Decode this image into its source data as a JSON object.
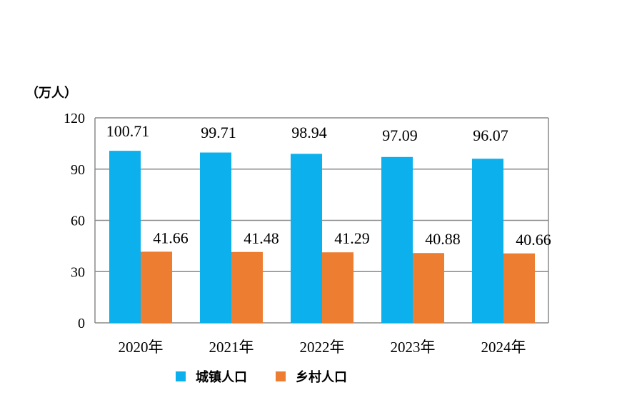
{
  "colors": {
    "urban": "#0bb0ec",
    "rural": "#ed7d31",
    "grid": "#8a8a8a"
  },
  "chart_data": {
    "type": "bar",
    "unit": "（万人）",
    "categories": [
      "2020年",
      "2021年",
      "2022年",
      "2023年",
      "2024年"
    ],
    "series": [
      {
        "name": "城镇人口",
        "values": [
          100.71,
          99.71,
          98.94,
          97.09,
          96.07
        ],
        "labels": [
          "100.71",
          "99.71",
          "98.94",
          "97.09",
          "96.07"
        ]
      },
      {
        "name": "乡村人口",
        "values": [
          41.66,
          41.48,
          41.29,
          40.88,
          40.66
        ],
        "labels": [
          "41.66",
          "41.48",
          "41.29",
          "40.88",
          "40.66"
        ]
      }
    ],
    "yticks": [
      "0",
      "30",
      "60",
      "90",
      "120"
    ],
    "ylim": [
      0,
      120
    ],
    "grid": true,
    "legend_position": "bottom"
  }
}
